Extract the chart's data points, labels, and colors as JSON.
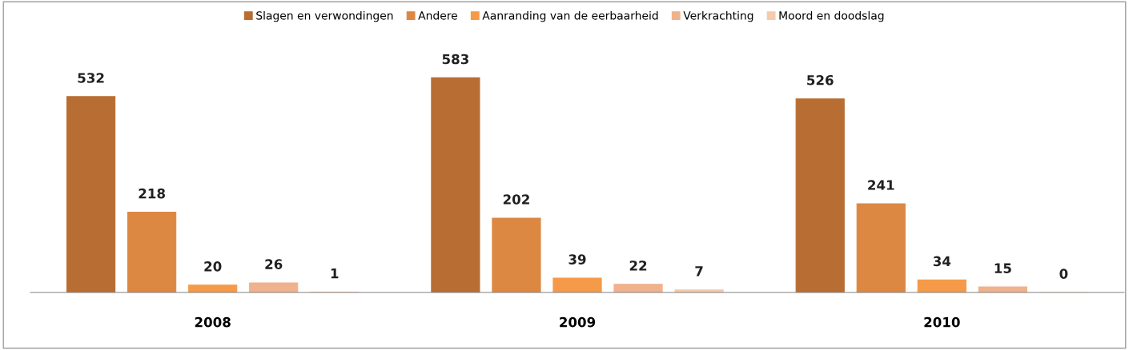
{
  "chart_data": {
    "type": "bar",
    "categories": [
      "2008",
      "2009",
      "2010"
    ],
    "series": [
      {
        "name": "Slagen en verwondingen",
        "color": "#b86e32",
        "values": [
          532,
          583,
          526
        ]
      },
      {
        "name": "Andere",
        "color": "#dc8843",
        "values": [
          218,
          202,
          241
        ]
      },
      {
        "name": "Aanranding van de eerbaarheid",
        "color": "#f59a48",
        "values": [
          20,
          39,
          34
        ]
      },
      {
        "name": "Verkrachting",
        "color": "#f0b28c",
        "values": [
          26,
          22,
          15
        ]
      },
      {
        "name": "Moord en doodslag",
        "color": "#f7c9ad",
        "values": [
          1,
          7,
          0
        ]
      }
    ],
    "data_labels": true,
    "legend": "top",
    "grid": false
  }
}
